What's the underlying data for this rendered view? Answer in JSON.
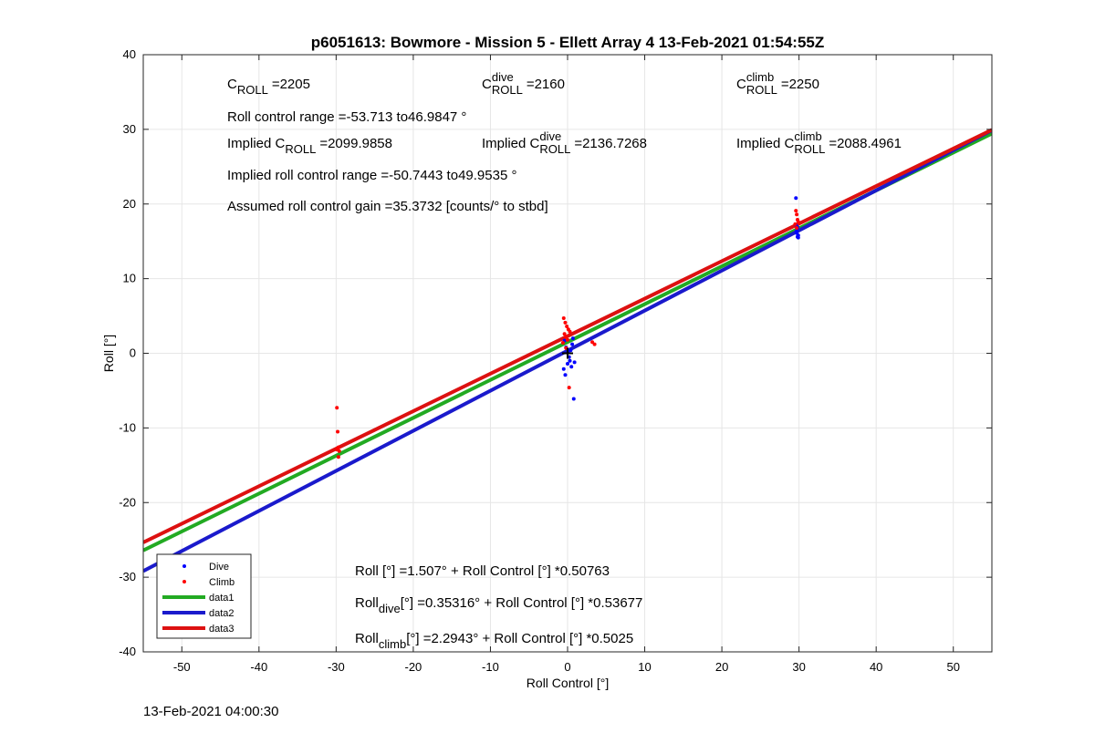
{
  "chart_data": {
    "type": "scatter",
    "title": "p6051613: Bowmore - Mission 5 - Ellett Array 4 13-Feb-2021 01:54:55Z",
    "xlabel": "Roll Control [°]",
    "ylabel": "Roll [°]",
    "xlim": [
      -55,
      55
    ],
    "ylim": [
      -40,
      40
    ],
    "xticks": [
      -50,
      -40,
      -30,
      -20,
      -10,
      0,
      10,
      20,
      30,
      40,
      50
    ],
    "yticks": [
      -40,
      -30,
      -20,
      -10,
      0,
      10,
      20,
      30,
      40
    ],
    "grid": true,
    "legend_position": "bottom-left",
    "colors": {
      "dive": "#0000ff",
      "climb": "#ff0000",
      "data1": "#22aa22",
      "data2": "#1a1acc",
      "data3": "#dd1111"
    },
    "series": [
      {
        "name": "Dive",
        "kind": "points",
        "x": [
          29.6,
          29.7,
          29.8,
          29.9,
          29.7,
          29.8,
          29.6,
          29.9,
          -0.5,
          -0.3,
          0.0,
          0.2,
          0.4,
          0.6,
          -0.4,
          0.1,
          0.3,
          -0.2,
          0.8,
          0.5,
          0.9,
          0.7
        ],
        "y": [
          20.8,
          16.1,
          15.6,
          15.8,
          16.4,
          16.9,
          17.2,
          15.5,
          -2.1,
          -2.9,
          -1.4,
          -0.5,
          0.4,
          1.2,
          1.7,
          0.3,
          -1.0,
          0.8,
          -6.1,
          -1.8,
          -1.2,
          2.0
        ]
      },
      {
        "name": "Climb",
        "kind": "points",
        "x": [
          -29.9,
          -29.8,
          -29.7,
          -29.6,
          -29.9,
          -29.7,
          29.6,
          29.7,
          29.8,
          29.5,
          29.7,
          29.9,
          -0.5,
          -0.3,
          -0.1,
          0.1,
          0.3,
          -0.4,
          -0.2,
          0.0,
          -0.6,
          -0.2,
          0.2,
          3.2,
          3.5
        ],
        "y": [
          -7.3,
          -10.5,
          -12.6,
          -13.1,
          -12.9,
          -13.9,
          19.1,
          18.6,
          17.9,
          17.3,
          16.8,
          17.6,
          4.7,
          4.1,
          3.6,
          3.2,
          2.9,
          2.6,
          2.2,
          1.8,
          1.4,
          0.7,
          -4.6,
          1.5,
          1.2
        ]
      },
      {
        "name": "data1",
        "kind": "line",
        "intercept": 1.507,
        "slope": 0.50763
      },
      {
        "name": "data2",
        "kind": "line",
        "intercept": 0.35316,
        "slope": 0.53677
      },
      {
        "name": "data3",
        "kind": "line",
        "intercept": 2.2943,
        "slope": 0.5025
      }
    ],
    "origin_marker": {
      "x": 0,
      "y": 0
    },
    "annotations": {
      "croll": {
        "prefix": "C",
        "sub": "ROLL",
        "value": "=2205"
      },
      "cdive": {
        "prefix": "C",
        "sup": "dive",
        "sub": "ROLL",
        "value": "=2160"
      },
      "cclimb": {
        "prefix": "C",
        "sup": "climb",
        "sub": "ROLL",
        "value": "=2250"
      },
      "roll_range": "Roll control range =-53.713 to46.9847 °",
      "implied_croll": {
        "prefix": "Implied C",
        "sub": "ROLL",
        "value": "=2099.9858"
      },
      "implied_cdive": {
        "prefix": "Implied C",
        "sup": "dive",
        "sub": "ROLL",
        "value": "=2136.7268"
      },
      "implied_cclimb": {
        "prefix": "Implied C",
        "sup": "climb",
        "sub": "ROLL",
        "value": "=2088.4961"
      },
      "implied_range": "Implied roll control range =-50.7443 to49.9535 °",
      "gain": "Assumed roll control gain =35.3732 [counts/° to stbd]",
      "fit_all": "Roll [°] =1.507° + Roll Control [°] *0.50763",
      "fit_dive": {
        "prefix": "Roll",
        "sub": "dive",
        "rest": " [°] =0.35316° + Roll Control [°] *0.53677"
      },
      "fit_climb": {
        "prefix": "Roll",
        "sub": "climb",
        "rest": " [°] =2.2943° + Roll Control [°] *0.5025"
      }
    }
  },
  "footer": {
    "timestamp": "13-Feb-2021 04:00:30"
  }
}
